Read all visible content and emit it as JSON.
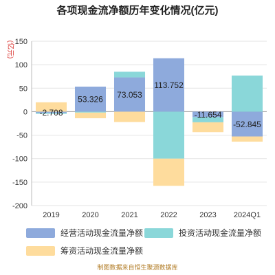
{
  "chart_data": {
    "type": "bar",
    "stacked": true,
    "title": "各项现金流净额历年变化情况(亿元)",
    "ylabel": "(亿元)",
    "ylim": [
      -200,
      150
    ],
    "yticks": [
      150,
      100,
      50,
      0,
      -50,
      -100,
      -150,
      -200
    ],
    "grid": true,
    "legend_position": "bottom",
    "categories": [
      "2019",
      "2020",
      "2021",
      "2022",
      "2023",
      "2024Q1"
    ],
    "series": [
      {
        "name": "经营活动现金流量净额",
        "color": "#8eaadc",
        "values": [
          -2.708,
          53.326,
          73.053,
          113.752,
          -11.654,
          -52.845
        ]
      },
      {
        "name": "投资活动现金流量净额",
        "color": "#8ad7d9",
        "values": [
          -2,
          -2,
          12,
          -100,
          -11,
          77
        ]
      },
      {
        "name": "筹资活动现金流量净额",
        "color": "#fedc9d",
        "values": [
          20,
          -12,
          -22,
          -58,
          -21,
          -11
        ]
      }
    ],
    "data_labels": [
      "-2.708",
      "53.326",
      "73.053",
      "113.752",
      "-11.654",
      "-52.845"
    ],
    "source": "制图数据来自恒生聚源数据库"
  }
}
